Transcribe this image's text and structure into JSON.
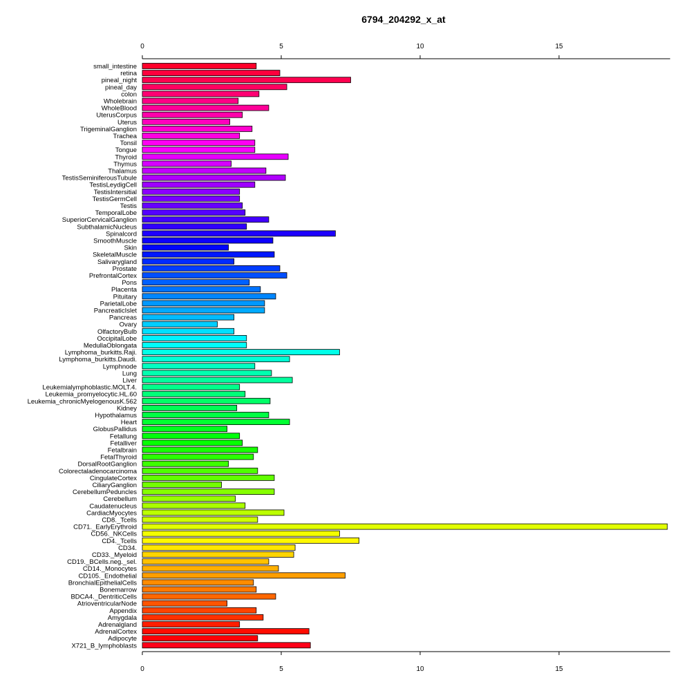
{
  "chart_data": {
    "type": "bar",
    "orientation": "horizontal",
    "title": "6794_204292_x_at",
    "xlim": [
      0,
      19
    ],
    "xticks": [
      0,
      5,
      10,
      15
    ],
    "tick_labels": [
      "0",
      "5",
      "10",
      "15"
    ],
    "categories": [
      "small_intestine",
      "retina",
      "pineal_night",
      "pineal_day",
      "colon",
      "Wholebrain",
      "WholeBlood",
      "UterusCorpus",
      "Uterus",
      "TrigeminalGanglion",
      "Trachea",
      "Tonsil",
      "Tongue",
      "Thyroid",
      "Thymus",
      "Thalamus",
      "TestisSeminiferousTubule",
      "TestisLeydigCell",
      "TestisIntersitial",
      "TestisGermCell",
      "Testis",
      "TemporalLobe",
      "SuperiorCervicalGanglion",
      "SubthalamicNucleus",
      "Spinalcord",
      "SmoothMuscle",
      "Skin",
      "SkeletalMuscle",
      "Salivarygland",
      "Prostate",
      "PrefrontalCortex",
      "Pons",
      "Placenta",
      "Pituitary",
      "ParietalLobe",
      "PancreaticIslet",
      "Pancreas",
      "Ovary",
      "OlfactoryBulb",
      "OccipitalLobe",
      "MedullaOblongata",
      "Lymphoma_burkitts.Raji.",
      "Lymphoma_burkitts.Daudi.",
      "Lymphnode",
      "Lung",
      "Liver",
      "Leukemialymphoblastic.MOLT.4.",
      "Leukemia_promyelocytic.HL.60",
      "Leukemia_chronicMyelogenousK.562",
      "Kidney",
      "Hypothalamus",
      "Heart",
      "GlobusPallidus",
      "Fetallung",
      "Fetalliver",
      "Fetalbrain",
      "FetalThyroid",
      "DorsalRootGanglion",
      "Colorectaladenocarcinoma",
      "CingulateCortex",
      "CiliaryGanglion",
      "CerebellumPeduncles",
      "Cerebellum",
      "Caudatenucleus",
      "CardiacMyocytes",
      "CD8._Tcells",
      "CD71._EarlyErythroid",
      "CD56._NKCells",
      "CD4._Tcells",
      "CD34.",
      "CD33._Myeloid",
      "CD19._BCells.neg._sel.",
      "CD14._Monocytes",
      "CD105._Endothelial",
      "BronchialEpithelialCells",
      "Bonemarrow",
      "BDCA4._DentriticCells",
      "AtrioventricularNode",
      "Appendix",
      "Amygdala",
      "Adrenalgland",
      "AdrenalCortex",
      "Adipocyte",
      "X721_B_lymphoblasts"
    ],
    "values": [
      4.1,
      4.95,
      7.5,
      5.2,
      4.2,
      3.45,
      4.55,
      3.6,
      3.15,
      3.95,
      3.5,
      4.05,
      4.05,
      5.25,
      3.2,
      4.45,
      5.15,
      4.05,
      3.5,
      3.5,
      3.6,
      3.7,
      4.55,
      3.75,
      6.95,
      4.7,
      3.1,
      4.75,
      3.3,
      4.95,
      5.2,
      3.85,
      4.25,
      4.8,
      4.4,
      4.4,
      3.3,
      2.7,
      3.3,
      3.75,
      3.75,
      7.1,
      5.3,
      4.05,
      4.65,
      5.4,
      3.5,
      3.7,
      4.6,
      3.4,
      4.55,
      5.3,
      3.05,
      3.5,
      3.6,
      4.15,
      4.0,
      3.1,
      4.15,
      4.75,
      2.85,
      4.75,
      3.35,
      3.7,
      5.1,
      4.15,
      18.9,
      7.1,
      7.8,
      5.5,
      5.45,
      4.55,
      4.9,
      7.3,
      4.0,
      4.1,
      4.8,
      3.05,
      4.1,
      4.35,
      3.5,
      6.0,
      4.15,
      6.05
    ]
  }
}
